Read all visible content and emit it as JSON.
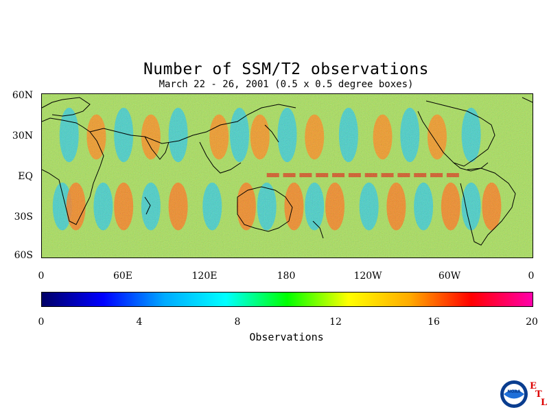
{
  "title": "Number of SSM/T2 observations",
  "subtitle": "March 22 - 26, 2001 (0.5 x 0.5 degree boxes)",
  "lat_labels": [
    "60N",
    "30N",
    "EQ",
    "30S",
    "60S"
  ],
  "lon_labels": [
    "0",
    "60E",
    "120E",
    "180",
    "120W",
    "60W",
    "0"
  ],
  "colorbar": {
    "title": "Observations",
    "tick_labels": [
      "0",
      "4",
      "8",
      "12",
      "16",
      "20"
    ],
    "range": [
      0,
      20
    ],
    "colors": [
      "#000066",
      "#0000ff",
      "#00aaff",
      "#00ffff",
      "#00ff00",
      "#ffff00",
      "#ffaa00",
      "#ff0000",
      "#ff00aa"
    ]
  },
  "logo": {
    "text": "NOAA",
    "etl_letters": [
      "E",
      "T",
      "L"
    ]
  },
  "chart_data": {
    "type": "heatmap",
    "title": "Number of SSM/T2 observations",
    "subtitle": "March 22 - 26, 2001 (0.5 x 0.5 degree boxes)",
    "x_axis": "longitude",
    "y_axis": "latitude",
    "xlim": [
      0,
      360
    ],
    "ylim": [
      -60,
      60
    ],
    "value_label": "Observations",
    "value_range": [
      0,
      20
    ],
    "typical_value": 10,
    "pattern": "alternating high/low swath bands along satellite orbit tracks",
    "high_band_lons_nh": [
      40,
      80,
      130,
      160,
      200,
      250,
      290
    ],
    "high_band_lons_sh": [
      25,
      60,
      100,
      150,
      185,
      215,
      260,
      300,
      330
    ],
    "low_band_lons_nh": [
      20,
      60,
      100,
      145,
      180,
      225,
      270,
      315
    ],
    "low_band_lons_sh": [
      15,
      45,
      80,
      125,
      165,
      200,
      240,
      280,
      315
    ]
  }
}
